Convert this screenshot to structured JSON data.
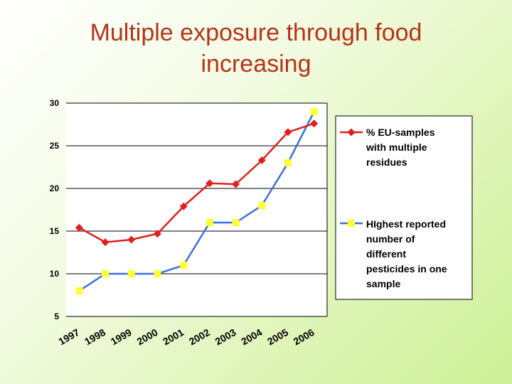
{
  "slide": {
    "title_line1": "Multiple exposure through food",
    "title_line2": "increasing"
  },
  "chart_data": {
    "type": "line",
    "title": "Multiple exposure through food increasing",
    "categories": [
      "1997",
      "1998",
      "1999",
      "2000",
      "2001",
      "2002",
      "2003",
      "2004",
      "2005",
      "2006"
    ],
    "ylim": [
      5,
      30
    ],
    "yticks": [
      "30",
      "25",
      "20",
      "15",
      "10",
      "5"
    ],
    "ytick_values": [
      30,
      25,
      20,
      15,
      10,
      5
    ],
    "grid": true,
    "legend_position": "right",
    "series": [
      {
        "name": "% EU-samples with multiple residues",
        "legend_lines": [
          "% EU-samples",
          "with multiple",
          "residues"
        ],
        "color": "#e0201b",
        "marker": "diamond",
        "values": [
          15.4,
          13.7,
          14.0,
          14.7,
          17.9,
          20.6,
          20.5,
          23.3,
          26.6,
          27.6
        ]
      },
      {
        "name": "HIghest reported number of different pesticides in one sample",
        "legend_lines": [
          "HIghest reported",
          "number of",
          "different",
          "pesticides in one",
          "sample"
        ],
        "color": "#3a6fdc",
        "marker_color": "#ffff33",
        "marker": "square",
        "values": [
          8,
          10,
          10,
          10,
          11,
          16,
          16,
          18,
          23,
          29
        ]
      }
    ]
  }
}
